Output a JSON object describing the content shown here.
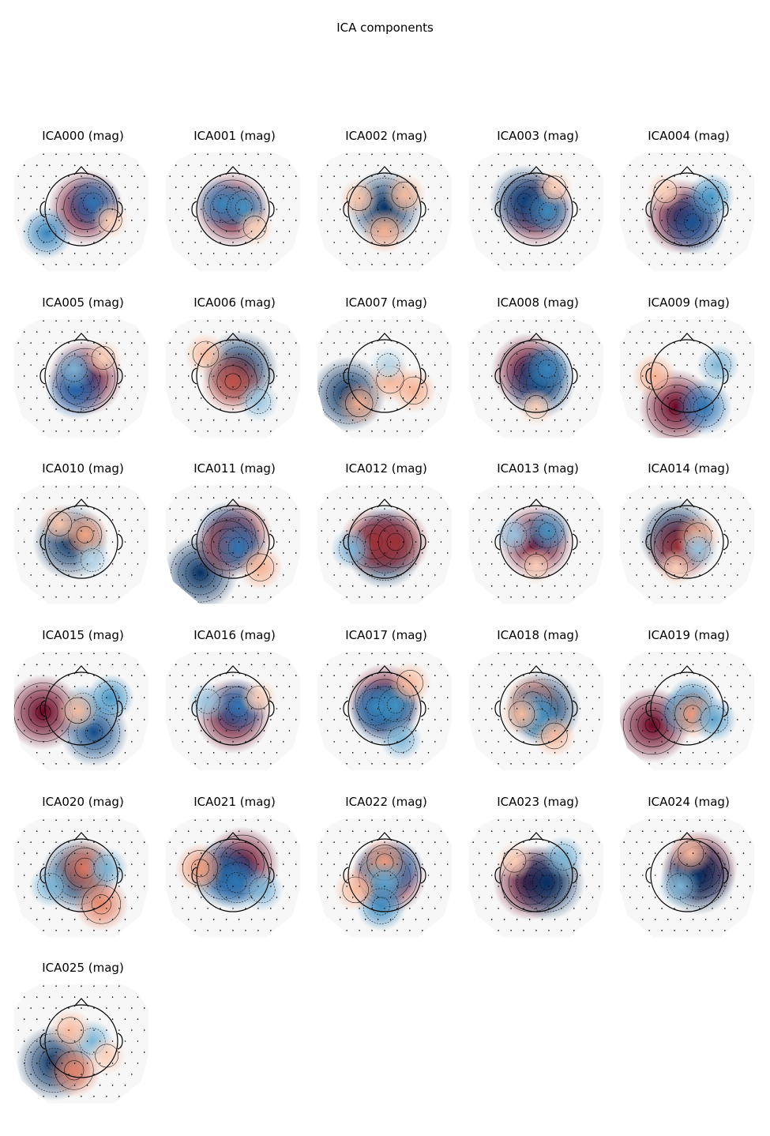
{
  "title": "ICA components",
  "chart_data": {
    "type": "topomap",
    "title": "ICA components",
    "channel_type": "mag",
    "colormap": "RdBu_r",
    "colors": {
      "positive": "#67001f",
      "negative": "#053061",
      "neutral": "#f7f7f7"
    },
    "components": [
      {
        "label": "ICA000 (mag)",
        "blobs": [
          {
            "x": 0.12,
            "y": 0.05,
            "w": 1.0
          },
          {
            "x": 0.32,
            "y": 0.18,
            "w": -0.6
          },
          {
            "x": -0.95,
            "y": -0.65,
            "w": -0.5
          },
          {
            "x": 0.8,
            "y": -0.3,
            "w": 0.2
          }
        ]
      },
      {
        "label": "ICA001 (mag)",
        "blobs": [
          {
            "x": -0.02,
            "y": 0.0,
            "w": 1.0
          },
          {
            "x": -0.3,
            "y": 0.15,
            "w": -0.5
          },
          {
            "x": 0.3,
            "y": 0.05,
            "w": -0.4
          },
          {
            "x": 0.6,
            "y": -0.5,
            "w": 0.2
          }
        ]
      },
      {
        "label": "ICA002 (mag)",
        "blobs": [
          {
            "x": 0.0,
            "y": 0.05,
            "w": -1.0
          },
          {
            "x": 0.0,
            "y": -0.6,
            "w": 0.35
          },
          {
            "x": 0.55,
            "y": 0.4,
            "w": 0.3
          },
          {
            "x": -0.7,
            "y": 0.3,
            "w": 0.25
          }
        ]
      },
      {
        "label": "ICA003 (mag)",
        "blobs": [
          {
            "x": 0.0,
            "y": 0.0,
            "w": 1.0
          },
          {
            "x": -0.32,
            "y": 0.25,
            "w": -0.9
          },
          {
            "x": 0.32,
            "y": -0.05,
            "w": -0.45
          },
          {
            "x": 0.5,
            "y": 0.6,
            "w": 0.2
          }
        ]
      },
      {
        "label": "ICA004 (mag)",
        "blobs": [
          {
            "x": -0.15,
            "y": -0.2,
            "w": 1.0
          },
          {
            "x": 0.15,
            "y": -0.35,
            "w": -0.8
          },
          {
            "x": 0.65,
            "y": 0.35,
            "w": -0.4
          },
          {
            "x": -0.6,
            "y": 0.5,
            "w": 0.2
          }
        ]
      },
      {
        "label": "ICA005 (mag)",
        "blobs": [
          {
            "x": 0.12,
            "y": -0.05,
            "w": 1.0
          },
          {
            "x": -0.15,
            "y": -0.35,
            "w": -0.7
          },
          {
            "x": -0.2,
            "y": 0.2,
            "w": -0.3
          },
          {
            "x": 0.6,
            "y": 0.5,
            "w": 0.2
          }
        ]
      },
      {
        "label": "ICA006 (mag)",
        "blobs": [
          {
            "x": 0.2,
            "y": 0.2,
            "w": -1.0
          },
          {
            "x": 0.0,
            "y": -0.15,
            "w": 0.75
          },
          {
            "x": -0.75,
            "y": 0.6,
            "w": 0.3
          },
          {
            "x": 0.7,
            "y": -0.7,
            "w": -0.25
          }
        ]
      },
      {
        "label": "ICA007 (mag)",
        "blobs": [
          {
            "x": -1.0,
            "y": -0.5,
            "w": -1.0
          },
          {
            "x": -0.7,
            "y": -0.75,
            "w": 0.35
          },
          {
            "x": 0.8,
            "y": -0.4,
            "w": 0.35
          },
          {
            "x": 0.15,
            "y": -0.1,
            "w": 0.35
          },
          {
            "x": 0.1,
            "y": 0.3,
            "w": -0.2
          }
        ]
      },
      {
        "label": "ICA008 (mag)",
        "blobs": [
          {
            "x": -0.2,
            "y": 0.15,
            "w": 1.0
          },
          {
            "x": 0.1,
            "y": -0.2,
            "w": -0.9
          },
          {
            "x": 0.3,
            "y": 0.2,
            "w": -0.5
          },
          {
            "x": 0.0,
            "y": -0.85,
            "w": 0.2
          }
        ]
      },
      {
        "label": "ICA009 (mag)",
        "blobs": [
          {
            "x": -0.3,
            "y": -0.85,
            "w": 1.0
          },
          {
            "x": 0.45,
            "y": -0.85,
            "w": -0.6
          },
          {
            "x": -0.9,
            "y": 0.0,
            "w": 0.35
          },
          {
            "x": 0.85,
            "y": 0.3,
            "w": -0.3
          }
        ]
      },
      {
        "label": "ICA010 (mag)",
        "blobs": [
          {
            "x": -0.3,
            "y": 0.0,
            "w": -1.0
          },
          {
            "x": 0.1,
            "y": 0.2,
            "w": 0.4
          },
          {
            "x": -0.6,
            "y": 0.5,
            "w": 0.25
          },
          {
            "x": 0.3,
            "y": -0.5,
            "w": -0.2
          }
        ]
      },
      {
        "label": "ICA011 (mag)",
        "blobs": [
          {
            "x": -0.9,
            "y": -0.85,
            "w": -1.0
          },
          {
            "x": 0.15,
            "y": 0.2,
            "w": 0.85
          },
          {
            "x": -0.15,
            "y": 0.2,
            "w": -0.8
          },
          {
            "x": -0.15,
            "y": -0.1,
            "w": 0.8
          },
          {
            "x": 0.15,
            "y": -0.15,
            "w": -0.6
          },
          {
            "x": 0.75,
            "y": -0.7,
            "w": 0.35
          }
        ]
      },
      {
        "label": "ICA012 (mag)",
        "blobs": [
          {
            "x": 0.0,
            "y": -0.25,
            "w": -1.0
          },
          {
            "x": 0.0,
            "y": 0.2,
            "w": -0.6
          },
          {
            "x": -0.3,
            "y": 0.0,
            "w": 0.85
          },
          {
            "x": 0.3,
            "y": 0.0,
            "w": 0.85
          },
          {
            "x": -0.9,
            "y": -0.2,
            "w": -0.3
          }
        ]
      },
      {
        "label": "ICA013 (mag)",
        "blobs": [
          {
            "x": 0.0,
            "y": 0.0,
            "w": 1.0
          },
          {
            "x": 0.3,
            "y": 0.3,
            "w": -0.4
          },
          {
            "x": -0.6,
            "y": 0.2,
            "w": -0.25
          },
          {
            "x": 0.0,
            "y": -0.65,
            "w": 0.2
          }
        ]
      },
      {
        "label": "ICA014 (mag)",
        "blobs": [
          {
            "x": -0.3,
            "y": 0.15,
            "w": -1.0
          },
          {
            "x": -0.2,
            "y": -0.15,
            "w": 0.85
          },
          {
            "x": 0.3,
            "y": 0.15,
            "w": 0.35
          },
          {
            "x": 0.3,
            "y": -0.2,
            "w": -0.25
          },
          {
            "x": -0.3,
            "y": -0.7,
            "w": 0.2
          }
        ]
      },
      {
        "label": "ICA015 (mag)",
        "blobs": [
          {
            "x": -1.05,
            "y": -0.1,
            "w": 1.0
          },
          {
            "x": 0.35,
            "y": -0.65,
            "w": -0.85
          },
          {
            "x": 0.8,
            "y": 0.3,
            "w": -0.4
          },
          {
            "x": 0.05,
            "y": 0.05,
            "w": -0.35
          },
          {
            "x": -0.1,
            "y": -0.05,
            "w": 0.3
          }
        ]
      },
      {
        "label": "ICA016 (mag)",
        "blobs": [
          {
            "x": 0.0,
            "y": -0.2,
            "w": 1.0
          },
          {
            "x": 0.15,
            "y": 0.05,
            "w": -0.6
          },
          {
            "x": -0.7,
            "y": 0.2,
            "w": -0.25
          },
          {
            "x": 0.7,
            "y": 0.3,
            "w": 0.2
          }
        ]
      },
      {
        "label": "ICA017 (mag)",
        "blobs": [
          {
            "x": 0.0,
            "y": 0.2,
            "w": 1.0
          },
          {
            "x": 0.0,
            "y": -0.1,
            "w": -0.85
          },
          {
            "x": -0.25,
            "y": 0.05,
            "w": -0.5
          },
          {
            "x": 0.3,
            "y": 0.1,
            "w": -0.4
          },
          {
            "x": 0.7,
            "y": 0.7,
            "w": 0.3
          },
          {
            "x": 0.45,
            "y": -0.85,
            "w": -0.3
          }
        ]
      },
      {
        "label": "ICA018 (mag)",
        "blobs": [
          {
            "x": 0.2,
            "y": 0.0,
            "w": -1.0
          },
          {
            "x": -0.1,
            "y": 0.2,
            "w": 0.55
          },
          {
            "x": -0.1,
            "y": -0.05,
            "w": -0.5
          },
          {
            "x": 0.1,
            "y": -0.25,
            "w": -0.4
          },
          {
            "x": -0.4,
            "y": -0.15,
            "w": 0.3
          },
          {
            "x": 0.5,
            "y": -0.75,
            "w": 0.3
          }
        ]
      },
      {
        "label": "ICA019 (mag)",
        "blobs": [
          {
            "x": -0.95,
            "y": -0.45,
            "w": 1.0
          },
          {
            "x": 0.15,
            "y": 0.15,
            "w": -0.5
          },
          {
            "x": -0.15,
            "y": -0.1,
            "w": -0.4
          },
          {
            "x": 0.15,
            "y": -0.15,
            "w": 0.45
          },
          {
            "x": 0.75,
            "y": -0.3,
            "w": -0.35
          }
        ]
      },
      {
        "label": "ICA020 (mag)",
        "blobs": [
          {
            "x": -0.1,
            "y": 0.0,
            "w": -1.0
          },
          {
            "x": 0.1,
            "y": 0.2,
            "w": 0.6
          },
          {
            "x": 0.55,
            "y": -0.8,
            "w": 0.55
          },
          {
            "x": -0.85,
            "y": -0.3,
            "w": -0.3
          },
          {
            "x": 0.7,
            "y": 0.2,
            "w": -0.3
          }
        ]
      },
      {
        "label": "ICA021 (mag)",
        "blobs": [
          {
            "x": 0.25,
            "y": 0.3,
            "w": 1.0
          },
          {
            "x": -0.25,
            "y": 0.05,
            "w": -0.85
          },
          {
            "x": 0.1,
            "y": -0.2,
            "w": -0.6
          },
          {
            "x": -0.9,
            "y": 0.2,
            "w": 0.45
          },
          {
            "x": 0.8,
            "y": -0.4,
            "w": -0.3
          }
        ]
      },
      {
        "label": "ICA022 (mag)",
        "blobs": [
          {
            "x": 0.1,
            "y": -0.05,
            "w": 1.0
          },
          {
            "x": -0.15,
            "y": -0.05,
            "w": 0.6
          },
          {
            "x": 0.3,
            "y": 0.2,
            "w": -0.6
          },
          {
            "x": -0.2,
            "y": 0.2,
            "w": -0.4
          },
          {
            "x": 0.0,
            "y": 0.35,
            "w": 0.45
          },
          {
            "x": 0.0,
            "y": -0.25,
            "w": -0.35
          },
          {
            "x": -0.1,
            "y": -0.85,
            "w": -0.45
          },
          {
            "x": -0.8,
            "y": -0.4,
            "w": 0.3
          }
        ]
      },
      {
        "label": "ICA023 (mag)",
        "blobs": [
          {
            "x": -0.15,
            "y": -0.2,
            "w": 1.0
          },
          {
            "x": 0.3,
            "y": -0.2,
            "w": -1.0
          },
          {
            "x": 0.75,
            "y": 0.5,
            "w": -0.3
          },
          {
            "x": -0.6,
            "y": 0.4,
            "w": 0.2
          }
        ]
      },
      {
        "label": "ICA024 (mag)",
        "blobs": [
          {
            "x": 0.35,
            "y": 0.2,
            "w": 1.0
          },
          {
            "x": 0.3,
            "y": -0.05,
            "w": -1.0
          },
          {
            "x": -0.2,
            "y": -0.3,
            "w": -0.3
          },
          {
            "x": 0.1,
            "y": 0.6,
            "w": 0.3
          }
        ]
      },
      {
        "label": "ICA025 (mag)",
        "blobs": [
          {
            "x": -0.75,
            "y": -0.6,
            "w": -1.0
          },
          {
            "x": -0.2,
            "y": -0.8,
            "w": 0.55
          },
          {
            "x": 0.3,
            "y": 0.0,
            "w": -0.3
          },
          {
            "x": -0.3,
            "y": 0.3,
            "w": 0.3
          },
          {
            "x": 0.7,
            "y": -0.4,
            "w": 0.2
          }
        ]
      }
    ]
  }
}
